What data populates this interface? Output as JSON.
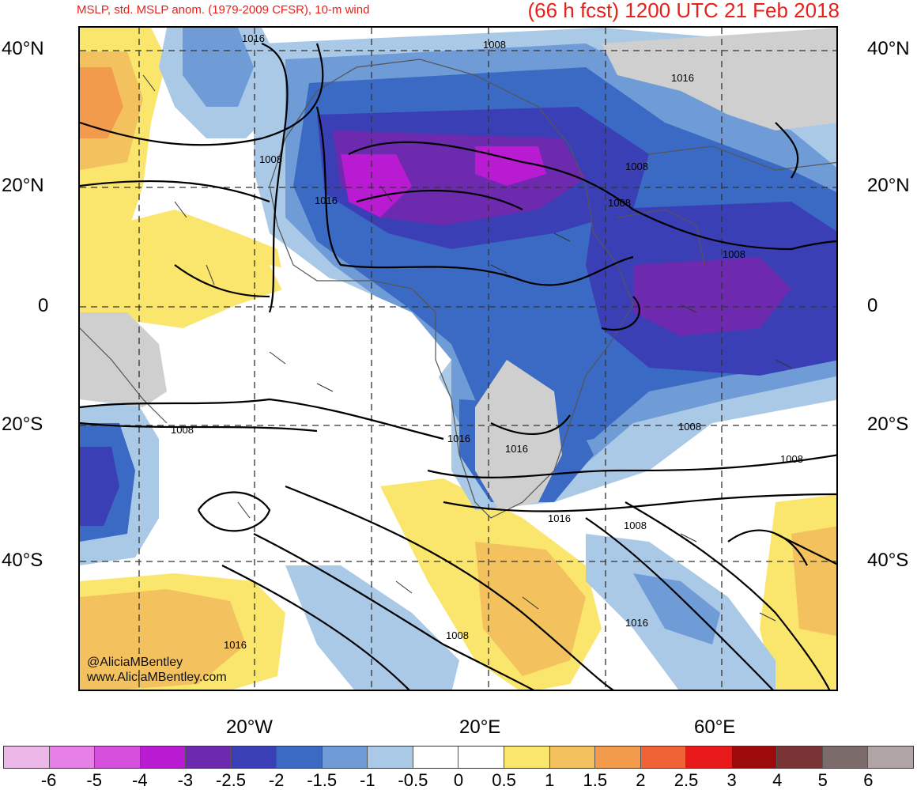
{
  "header": {
    "title_left": "MSLP, std. MSLP anom. (1979-2009 CFSR), 10-m wind",
    "title_right": "(66 h fcst) 1200 UTC 21 Feb 2018"
  },
  "axes": {
    "lat_labels_left": [
      "40°N",
      "20°N",
      "0",
      "20°S",
      "40°S"
    ],
    "lat_labels_right": [
      "40°N",
      "20°N",
      "0",
      "20°S",
      "40°S"
    ],
    "lon_labels": [
      "20°W",
      "20°E",
      "60°E"
    ]
  },
  "isobar_labels": [
    "1016",
    "1008",
    "1016",
    "1008",
    "1008",
    "1016",
    "1008",
    "1008",
    "1008",
    "1016",
    "1016",
    "1008",
    "1008",
    "1016",
    "1008",
    "1016",
    "1016",
    "1008"
  ],
  "credit": {
    "handle": "@AliciaMBentley",
    "site": "www.AliciaMBentley.com"
  },
  "colorbar": {
    "colors": [
      "#ecb8e8",
      "#e680e6",
      "#d34fdc",
      "#b81bd1",
      "#6d2aaf",
      "#3a3fb6",
      "#3a6ac3",
      "#6f9bd7",
      "#a9c9e6",
      "#ffffff",
      "#ffffff",
      "#fbe66d",
      "#f4c15f",
      "#f29b4c",
      "#f06336",
      "#e81a19",
      "#9c0a0b",
      "#7a3436",
      "#7b6b6b",
      "#b0a4a4"
    ],
    "ticks": [
      "-6",
      "-5",
      "-4",
      "-3",
      "-2.5",
      "-2",
      "-1.5",
      "-1",
      "-0.5",
      "0",
      "0.5",
      "1",
      "1.5",
      "2",
      "2.5",
      "3",
      "4",
      "5",
      "6"
    ]
  }
}
